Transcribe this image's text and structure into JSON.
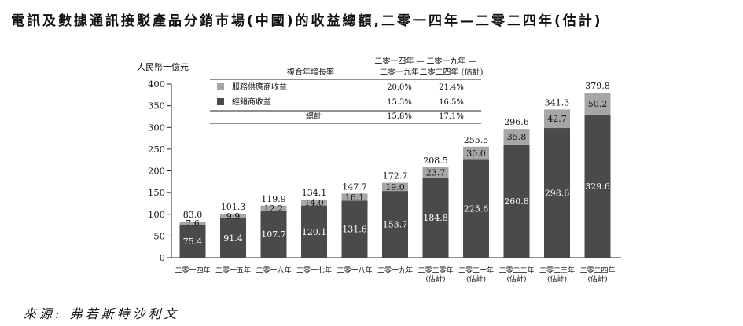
{
  "chart_data": {
    "type": "bar",
    "stacked": true,
    "title": "電訊及數據通訊接駁產品分銷市場(中國)的收益總額,二零一四年—二零二四年(估計)",
    "ylabel": "人民幣十億元",
    "ylim": [
      0,
      400
    ],
    "yticks": [
      0,
      50,
      100,
      150,
      200,
      250,
      300,
      350,
      400
    ],
    "categories": [
      [
        "二零一四年"
      ],
      [
        "二零一五年"
      ],
      [
        "二零一六年"
      ],
      [
        "二零一七年"
      ],
      [
        "二零一八年"
      ],
      [
        "二零一九年"
      ],
      [
        "二零二零年",
        "(估計)"
      ],
      [
        "二零二一年",
        "(估計)"
      ],
      [
        "二零二二年",
        "(估計)"
      ],
      [
        "二零二三年",
        "(估計)"
      ],
      [
        "二零二四年",
        "(估計)"
      ]
    ],
    "series": [
      {
        "name": "經銷商收益",
        "color": "#4a4a4a",
        "label_color": "#ffffff",
        "values": [
          75.4,
          91.4,
          107.7,
          120.1,
          131.6,
          153.7,
          184.8,
          225.6,
          260.8,
          298.6,
          329.6
        ]
      },
      {
        "name": "服務供應商收益",
        "color": "#a6a6a6",
        "label_color": "#111111",
        "values": [
          7.6,
          9.9,
          12.2,
          14.0,
          16.1,
          19.0,
          23.7,
          30.0,
          35.8,
          42.7,
          50.2
        ]
      }
    ],
    "totals": [
      83.0,
      101.3,
      119.9,
      134.1,
      147.7,
      172.7,
      208.5,
      255.5,
      296.6,
      341.3,
      379.8
    ],
    "cagr_table": {
      "header": "複合年增長率",
      "periods": [
        [
          "二零一四年 —",
          "二零一九年"
        ],
        [
          "二零一九年 —",
          "二零二四年 (估計)"
        ]
      ],
      "rows": [
        {
          "label": "服務供應商收益",
          "swatch": "#a6a6a6",
          "values": [
            "20.0%",
            "21.4%"
          ]
        },
        {
          "label": "經銷商收益",
          "swatch": "#4a4a4a",
          "values": [
            "15.3%",
            "16.5%"
          ]
        },
        {
          "label": "總計",
          "swatch": "",
          "values": [
            "15.8%",
            "17.1%"
          ]
        }
      ]
    }
  },
  "source_text": "來源: 弗若斯特沙利文"
}
